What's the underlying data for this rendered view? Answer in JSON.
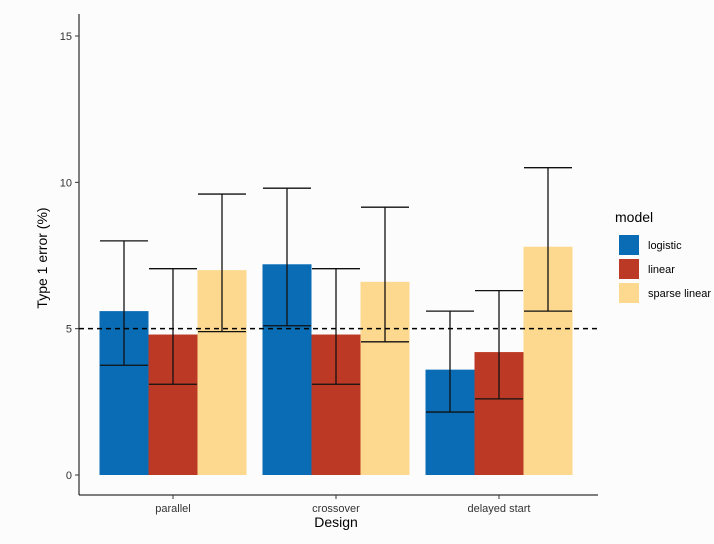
{
  "chart_data": {
    "type": "bar",
    "title": "",
    "xlabel": "Design",
    "ylabel": "Type 1 error (%)",
    "categories": [
      "parallel",
      "crossover",
      "delayed start"
    ],
    "ylim": [
      0,
      15
    ],
    "yticks": [
      0,
      5,
      10,
      15
    ],
    "grid": false,
    "reference_line": {
      "y": 5,
      "style": "dashed"
    },
    "legend": {
      "title": "model",
      "position": "right"
    },
    "series": [
      {
        "name": "logistic",
        "color": "#0a6cb4",
        "values": [
          5.6,
          7.2,
          3.6
        ],
        "error_low": [
          3.75,
          5.1,
          2.15
        ],
        "error_high": [
          8.0,
          9.8,
          5.6
        ]
      },
      {
        "name": "linear",
        "color": "#bc3a25",
        "values": [
          4.8,
          4.8,
          4.2
        ],
        "error_low": [
          3.1,
          3.1,
          2.6
        ],
        "error_high": [
          7.05,
          7.05,
          6.3
        ]
      },
      {
        "name": "sparse linear",
        "color": "#fcd98e",
        "values": [
          7.0,
          6.6,
          7.8
        ],
        "error_low": [
          4.9,
          4.55,
          5.6
        ],
        "error_high": [
          9.6,
          9.15,
          10.5
        ]
      }
    ]
  }
}
